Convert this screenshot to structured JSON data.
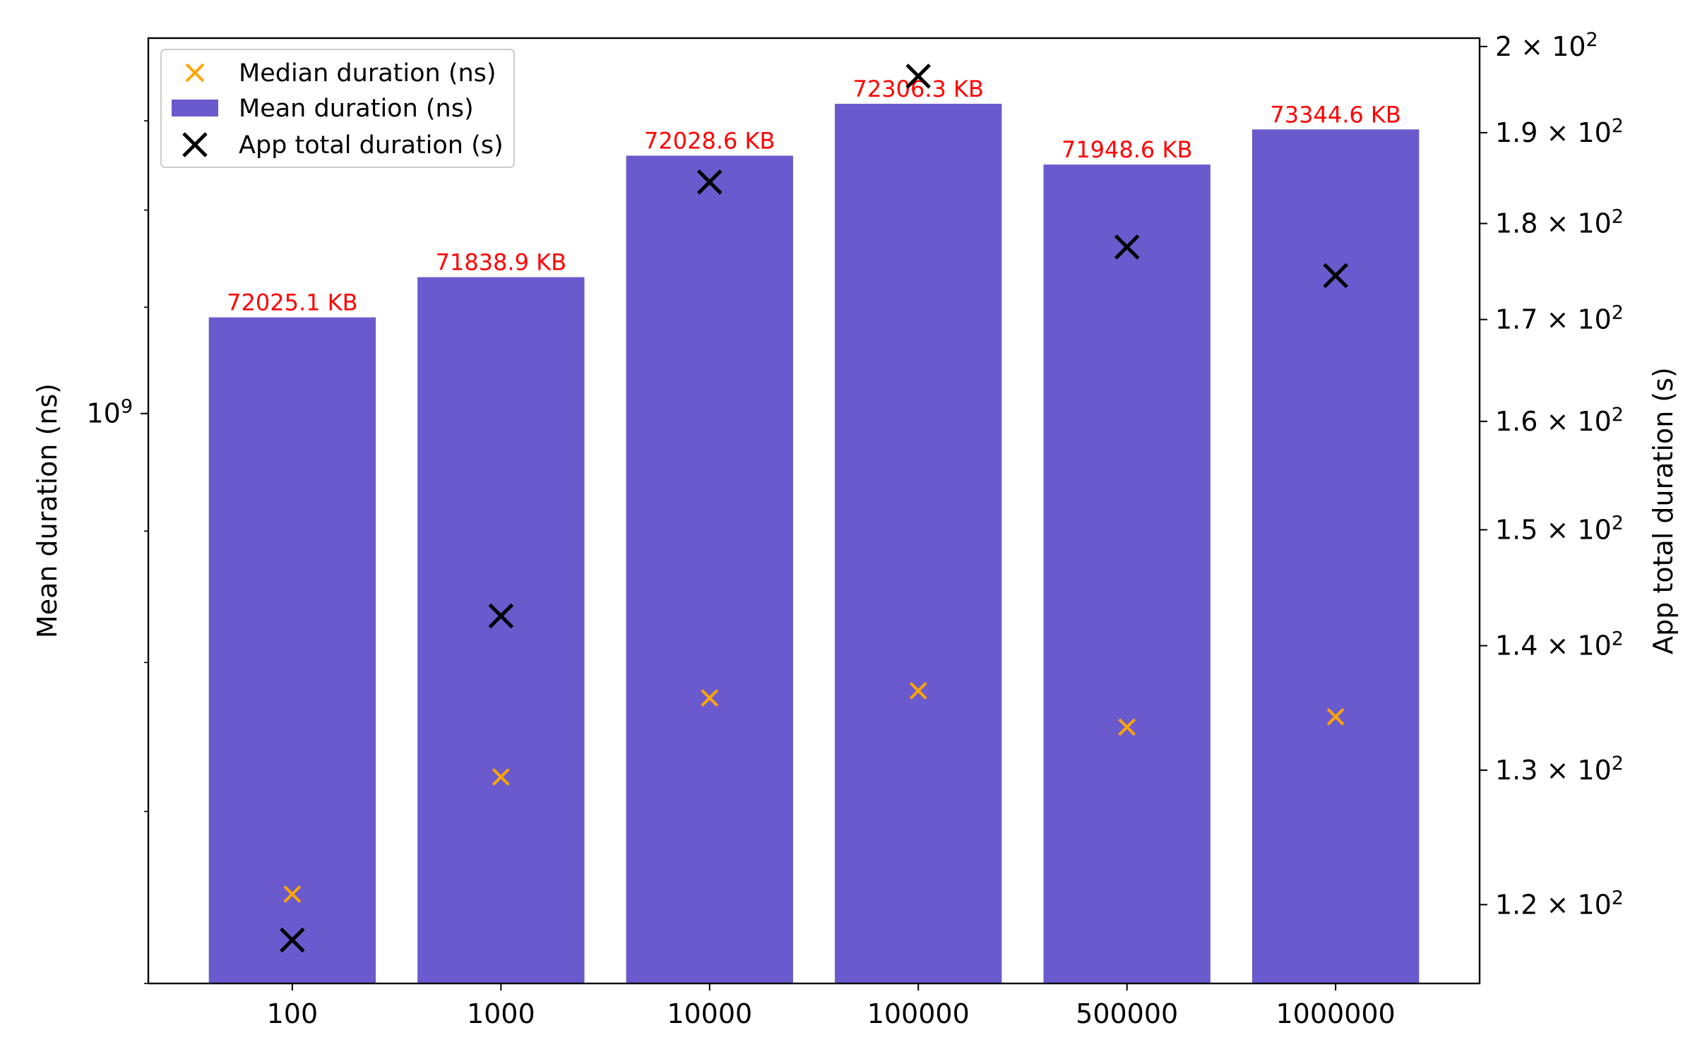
{
  "chart_data": {
    "type": "bar",
    "categories": [
      "100",
      "1000",
      "10000",
      "100000",
      "500000",
      "1000000"
    ],
    "bar_labels": [
      "72025.1 KB",
      "71838.9 KB",
      "72028.6 KB",
      "72306.3 KB",
      "71948.6 KB",
      "73344.6 KB"
    ],
    "series": [
      {
        "name": "Mean duration (ns)",
        "axis": "left",
        "kind": "bar",
        "color": "#6a5acd",
        "values": [
          1090000000,
          1130000000,
          1260000000,
          1320000000,
          1250000000,
          1290000000
        ]
      },
      {
        "name": "Median duration (ns)",
        "axis": "left",
        "kind": "scatter",
        "marker": "x",
        "color": "#ffa500",
        "values": [
          650000000,
          722000000,
          775000000,
          780000000,
          755000000,
          762000000
        ]
      },
      {
        "name": "App total duration (s)",
        "axis": "right",
        "kind": "scatter",
        "marker": "x",
        "color": "#000000",
        "values": [
          117.5,
          142.5,
          184.5,
          196.5,
          177.5,
          174.5
        ]
      }
    ],
    "ylabel": "Mean duration (ns)",
    "y2label": "App total duration (s)",
    "yscale": "log",
    "y2scale": "log",
    "ylim": [
      600000000,
      1400000000
    ],
    "y2lim": [
      114.5,
      201
    ],
    "y_major_ticks": [
      {
        "value": 1000000000,
        "base": "10",
        "exp": "9"
      }
    ],
    "y_minor_ticks": [
      600000000,
      700000000,
      800000000,
      900000000,
      1000000000,
      1100000000,
      1200000000,
      1300000000
    ],
    "y2_ticks": [
      {
        "value": 120,
        "mant": "1.2",
        "base": "10",
        "exp": "2"
      },
      {
        "value": 130,
        "mant": "1.3",
        "base": "10",
        "exp": "2"
      },
      {
        "value": 140,
        "mant": "1.4",
        "base": "10",
        "exp": "2"
      },
      {
        "value": 150,
        "mant": "1.5",
        "base": "10",
        "exp": "2"
      },
      {
        "value": 160,
        "mant": "1.6",
        "base": "10",
        "exp": "2"
      },
      {
        "value": 170,
        "mant": "1.7",
        "base": "10",
        "exp": "2"
      },
      {
        "value": 180,
        "mant": "1.8",
        "base": "10",
        "exp": "2"
      },
      {
        "value": 190,
        "mant": "1.9",
        "base": "10",
        "exp": "2"
      },
      {
        "value": 200,
        "mant": "2",
        "base": "10",
        "exp": "2"
      }
    ],
    "legend": {
      "position": "upper-left",
      "entries": [
        "Median duration (ns)",
        "Mean duration (ns)",
        "App total duration (s)"
      ]
    },
    "grid": false
  }
}
